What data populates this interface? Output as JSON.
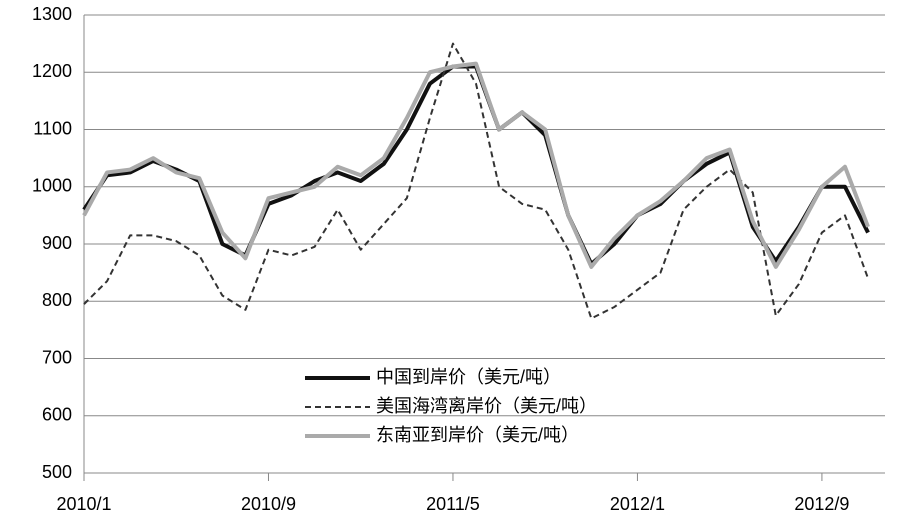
{
  "chart_data": {
    "type": "line",
    "categories": [
      "2010/1",
      null,
      null,
      null,
      null,
      null,
      null,
      null,
      "2010/9",
      null,
      null,
      null,
      null,
      null,
      null,
      null,
      "2011/5",
      null,
      null,
      null,
      null,
      null,
      null,
      null,
      "2012/1",
      null,
      null,
      null,
      null,
      null,
      null,
      null,
      "2012/9",
      null,
      null
    ],
    "series": [
      {
        "name": "中国到岸价（美元/吨）",
        "color": "#111111",
        "style": "solid",
        "width": 4,
        "values": [
          960,
          1020,
          1025,
          1045,
          1030,
          1010,
          900,
          880,
          970,
          985,
          1010,
          1025,
          1010,
          1040,
          1100,
          1180,
          1210,
          1210,
          1100,
          1130,
          1090,
          950,
          865,
          900,
          950,
          970,
          1010,
          1040,
          1060,
          930,
          870,
          930,
          1000,
          1000,
          920
        ]
      },
      {
        "name": "美国海湾离岸价（美元/吨）",
        "color": "#333333",
        "style": "dashed",
        "width": 2,
        "values": [
          795,
          835,
          915,
          915,
          905,
          880,
          810,
          785,
          890,
          880,
          895,
          960,
          890,
          935,
          980,
          1120,
          1250,
          1180,
          1000,
          970,
          960,
          890,
          770,
          790,
          820,
          850,
          960,
          1000,
          1030,
          990,
          775,
          830,
          920,
          950,
          840
        ]
      },
      {
        "name": "东南亚到岸价（美元/吨）",
        "color": "#aaaaaa",
        "style": "solid",
        "width": 4,
        "values": [
          950,
          1025,
          1030,
          1050,
          1025,
          1015,
          920,
          875,
          980,
          990,
          1000,
          1035,
          1020,
          1050,
          1120,
          1200,
          1210,
          1215,
          1100,
          1130,
          1100,
          950,
          860,
          910,
          950,
          975,
          1010,
          1050,
          1065,
          940,
          860,
          925,
          1000,
          1035,
          930
        ]
      }
    ],
    "ylim": [
      500,
      1300
    ],
    "yticks": [
      500,
      600,
      700,
      800,
      900,
      1000,
      1100,
      1200,
      1300
    ],
    "grid": true
  }
}
